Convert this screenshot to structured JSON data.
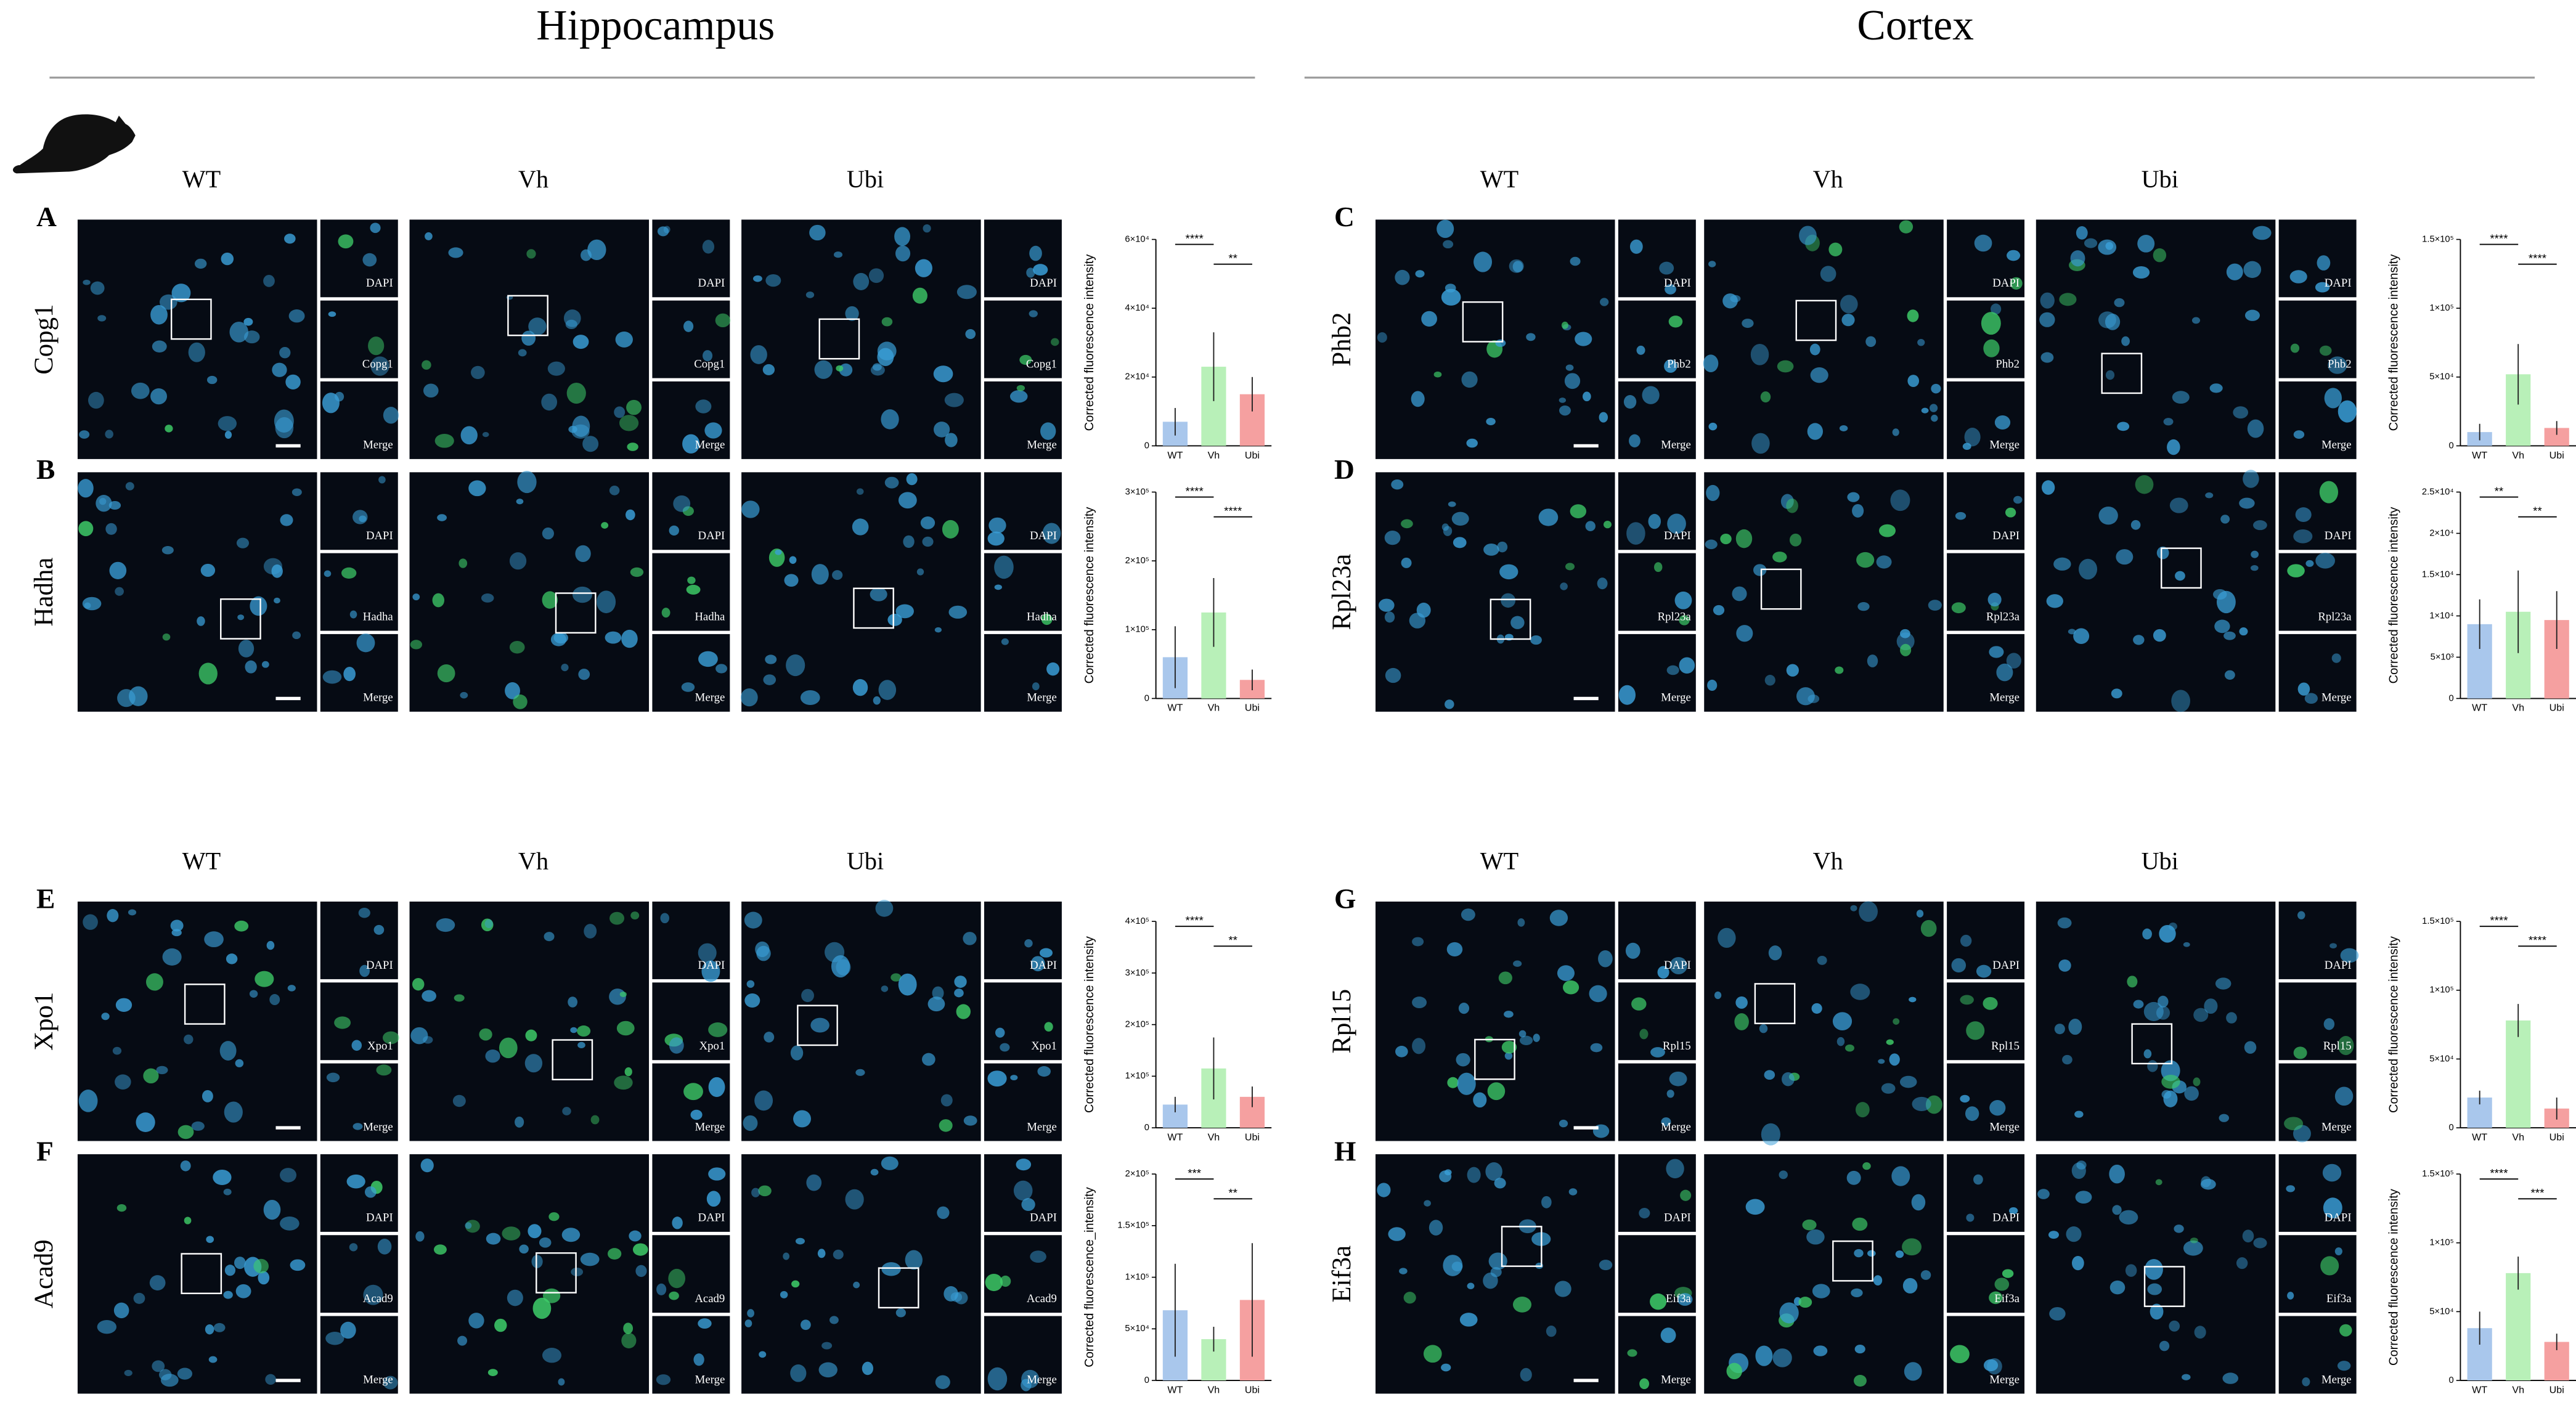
{
  "figure": {
    "regions": [
      {
        "title": "Hippocampus",
        "conditions": [
          "WT",
          "Vh",
          "Ubi"
        ]
      },
      {
        "title": "Cortex",
        "conditions": [
          "WT",
          "Vh",
          "Ubi"
        ]
      }
    ],
    "inset_labels": [
      "DAPI",
      "Merge"
    ]
  },
  "chart_data": [
    {
      "type": "bar",
      "panel": "A",
      "title": "Copg1",
      "ylabel": "Corrected fluorescence intensity",
      "categories": [
        "WT",
        "Vh",
        "Ubi"
      ],
      "values": [
        7000,
        23000,
        15000
      ],
      "errors": [
        4000,
        10000,
        5000
      ],
      "colors": [
        "#a9c7ec",
        "#b8f0b8",
        "#f5a0a0"
      ],
      "ylim": [
        0,
        60000
      ],
      "yticks": [
        0,
        {
          "value": 20000,
          "label": "2×10⁴"
        },
        {
          "value": 40000,
          "label": "4×10⁴"
        },
        {
          "value": 60000,
          "label": "6×10⁴"
        }
      ],
      "annotations": [
        {
          "label": "****",
          "between": [
            "WT",
            "Vh"
          ]
        },
        {
          "label": "**",
          "between": [
            "Vh",
            "Ubi"
          ]
        }
      ]
    },
    {
      "type": "bar",
      "panel": "B",
      "title": "Hadha",
      "ylabel": "Corrected fluorescence intensity",
      "categories": [
        "WT",
        "Vh",
        "Ubi"
      ],
      "values": [
        60000,
        125000,
        27000
      ],
      "errors": [
        45000,
        50000,
        15000
      ],
      "colors": [
        "#a9c7ec",
        "#b8f0b8",
        "#f5a0a0"
      ],
      "ylim": [
        0,
        300000
      ],
      "yticks": [
        0,
        {
          "value": 100000,
          "label": "1×10⁵"
        },
        {
          "value": 200000,
          "label": "2×10⁵"
        },
        {
          "value": 300000,
          "label": "3×10⁵"
        }
      ],
      "annotations": [
        {
          "label": "****",
          "between": [
            "WT",
            "Vh"
          ]
        },
        {
          "label": "****",
          "between": [
            "Vh",
            "Ubi"
          ]
        }
      ]
    },
    {
      "type": "bar",
      "panel": "C",
      "title": "Phb2",
      "ylabel": "Corrected fluorescence intensity",
      "categories": [
        "WT",
        "Vh",
        "Ubi"
      ],
      "values": [
        10000,
        52000,
        13000
      ],
      "errors": [
        6000,
        22000,
        5000
      ],
      "colors": [
        "#a9c7ec",
        "#b8f0b8",
        "#f5a0a0"
      ],
      "ylim": [
        0,
        150000
      ],
      "yticks": [
        0,
        {
          "value": 50000,
          "label": "5×10⁴"
        },
        {
          "value": 100000,
          "label": "1×10⁵"
        },
        {
          "value": 150000,
          "label": "1.5×10⁵"
        }
      ],
      "annotations": [
        {
          "label": "****",
          "between": [
            "WT",
            "Vh"
          ]
        },
        {
          "label": "****",
          "between": [
            "Vh",
            "Ubi"
          ]
        }
      ]
    },
    {
      "type": "bar",
      "panel": "D",
      "title": "Rpl23a",
      "ylabel": "Corrected fluorescence intensity",
      "categories": [
        "WT",
        "Vh",
        "Ubi"
      ],
      "values": [
        9000,
        10500,
        9500
      ],
      "errors": [
        3000,
        5000,
        3500
      ],
      "colors": [
        "#a9c7ec",
        "#b8f0b8",
        "#f5a0a0"
      ],
      "ylim": [
        0,
        25000
      ],
      "yticks": [
        0,
        {
          "value": 5000,
          "label": "5×10³"
        },
        {
          "value": 10000,
          "label": "1×10⁴"
        },
        {
          "value": 15000,
          "label": "1.5×10⁴"
        },
        {
          "value": 20000,
          "label": "2×10⁴"
        },
        {
          "value": 25000,
          "label": "2.5×10⁴"
        }
      ],
      "annotations": [
        {
          "label": "**",
          "between": [
            "WT",
            "Vh"
          ]
        },
        {
          "label": "**",
          "between": [
            "Vh",
            "Ubi"
          ]
        }
      ]
    },
    {
      "type": "bar",
      "panel": "E",
      "title": "Xpo1",
      "ylabel": "Corrected fluorescence intensity",
      "categories": [
        "WT",
        "Vh",
        "Ubi"
      ],
      "values": [
        45000,
        115000,
        60000
      ],
      "errors": [
        15000,
        60000,
        20000
      ],
      "colors": [
        "#a9c7ec",
        "#b8f0b8",
        "#f5a0a0"
      ],
      "ylim": [
        0,
        400000
      ],
      "yticks": [
        0,
        {
          "value": 100000,
          "label": "1×10⁵"
        },
        {
          "value": 200000,
          "label": "2×10⁵"
        },
        {
          "value": 300000,
          "label": "3×10⁵"
        },
        {
          "value": 400000,
          "label": "4×10⁵"
        }
      ],
      "annotations": [
        {
          "label": "****",
          "between": [
            "WT",
            "Vh"
          ]
        },
        {
          "label": "**",
          "between": [
            "Vh",
            "Ubi"
          ]
        }
      ]
    },
    {
      "type": "bar",
      "panel": "F",
      "title": "Acad9",
      "ylabel": "Corrected fluorescence_intensity",
      "categories": [
        "WT",
        "Vh",
        "Ubi"
      ],
      "values": [
        68000,
        40000,
        78000
      ],
      "errors": [
        45000,
        12000,
        55000
      ],
      "colors": [
        "#a9c7ec",
        "#b8f0b8",
        "#f5a0a0"
      ],
      "ylim": [
        0,
        200000
      ],
      "yticks": [
        0,
        {
          "value": 50000,
          "label": "5×10⁴"
        },
        {
          "value": 100000,
          "label": "1×10⁵"
        },
        {
          "value": 150000,
          "label": "1.5×10⁵"
        },
        {
          "value": 200000,
          "label": "2×10⁵"
        }
      ],
      "annotations": [
        {
          "label": "***",
          "between": [
            "WT",
            "Vh"
          ]
        },
        {
          "label": "**",
          "between": [
            "Vh",
            "Ubi"
          ]
        }
      ]
    },
    {
      "type": "bar",
      "panel": "G",
      "title": "Rpl15",
      "ylabel": "Corrected fluorescence intensity",
      "categories": [
        "WT",
        "Vh",
        "Ubi"
      ],
      "values": [
        22000,
        78000,
        14000
      ],
      "errors": [
        5000,
        12000,
        8000
      ],
      "colors": [
        "#a9c7ec",
        "#b8f0b8",
        "#f5a0a0"
      ],
      "ylim": [
        0,
        150000
      ],
      "yticks": [
        0,
        {
          "value": 50000,
          "label": "5×10⁴"
        },
        {
          "value": 100000,
          "label": "1×10⁵"
        },
        {
          "value": 150000,
          "label": "1.5×10⁵"
        }
      ],
      "annotations": [
        {
          "label": "****",
          "between": [
            "WT",
            "Vh"
          ]
        },
        {
          "label": "****",
          "between": [
            "Vh",
            "Ubi"
          ]
        }
      ]
    },
    {
      "type": "bar",
      "panel": "H",
      "title": "Eif3a",
      "ylabel": "Corrected fluorescence intensity",
      "categories": [
        "WT",
        "Vh",
        "Ubi"
      ],
      "values": [
        38000,
        78000,
        28000
      ],
      "errors": [
        12000,
        12000,
        6000
      ],
      "colors": [
        "#a9c7ec",
        "#b8f0b8",
        "#f5a0a0"
      ],
      "ylim": [
        0,
        150000
      ],
      "yticks": [
        0,
        {
          "value": 50000,
          "label": "5×10⁴"
        },
        {
          "value": 100000,
          "label": "1×10⁵"
        },
        {
          "value": 150000,
          "label": "1.5×10⁵"
        }
      ],
      "annotations": [
        {
          "label": "****",
          "between": [
            "WT",
            "Vh"
          ]
        },
        {
          "label": "***",
          "between": [
            "Vh",
            "Ubi"
          ]
        }
      ]
    }
  ]
}
